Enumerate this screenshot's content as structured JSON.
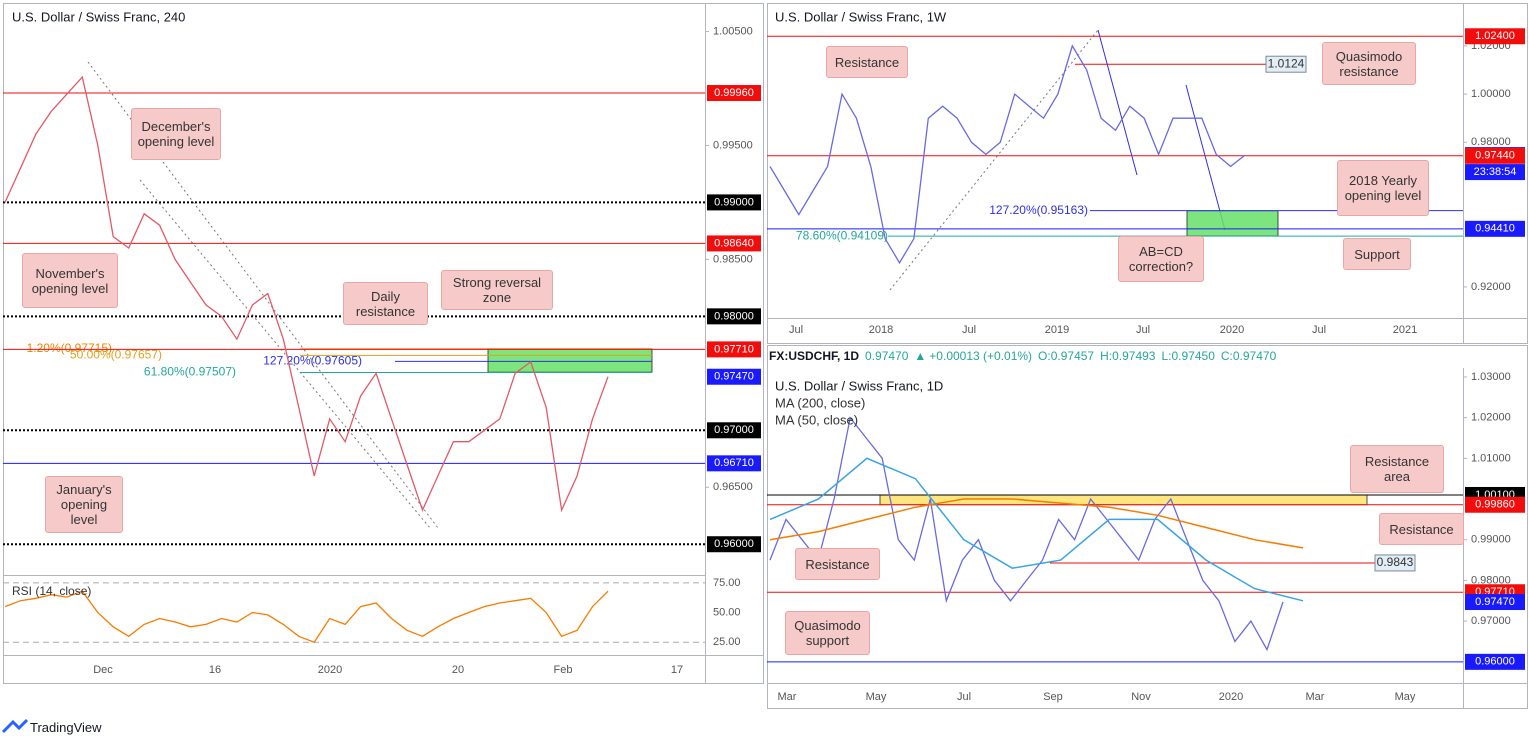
{
  "chart_data": [
    {
      "type": "line",
      "title": "U.S. Dollar / Swiss Franc, 240",
      "ylim": [
        0.9573,
        1.0075
      ],
      "yticks": [
        {
          "value": 1.005,
          "label": "1.00500"
        },
        {
          "value": 0.995,
          "label": "0.99500"
        },
        {
          "value": 0.985,
          "label": "0.98500"
        },
        {
          "value": 0.965,
          "label": "0.96500"
        }
      ],
      "levels": [
        {
          "value": 0.9996,
          "label": "0.99960",
          "color": "#f20d0d",
          "line": "solid"
        },
        {
          "value": 0.99,
          "label": "0.99000",
          "color": "#000000",
          "line": "dotted"
        },
        {
          "value": 0.9864,
          "label": "0.98640",
          "color": "#f20d0d",
          "line": "solid"
        },
        {
          "value": 0.98,
          "label": "0.98000",
          "color": "#000000",
          "line": "dotted"
        },
        {
          "value": 0.9771,
          "label": "0.97710",
          "color": "#f20d0d",
          "line": "solid"
        },
        {
          "value": 0.9747,
          "label": "0.97470",
          "color": "#1a1aff"
        },
        {
          "value": 0.97,
          "label": "0.97000",
          "color": "#000000",
          "line": "dotted"
        },
        {
          "value": 0.9671,
          "label": "0.96710",
          "color": "#1a1aff",
          "line": "solid"
        },
        {
          "value": 0.96,
          "label": "0.96000",
          "color": "#000000",
          "line": "dotted"
        }
      ],
      "fibs": [
        {
          "value": 0.97715,
          "label": "1.20%(0.97715)",
          "color": "#f08000"
        },
        {
          "value": 0.97657,
          "label": "50.00%(0.97657)",
          "color": "#e0a020"
        },
        {
          "value": 0.97605,
          "label": "127.20%(0.97605)",
          "color": "#3030e0"
        },
        {
          "value": 0.97507,
          "label": "61.80%(0.97507)",
          "color": "#26a69a"
        }
      ],
      "zone": {
        "ylim": [
          0.9751,
          0.97715
        ],
        "color": "#66e066"
      },
      "series": [
        {
          "color": "#e05a6a",
          "values": [
            0.99,
            0.993,
            0.996,
            0.998,
            0.9995,
            1.001,
            0.995,
            0.987,
            0.986,
            0.989,
            0.988,
            0.985,
            0.983,
            0.981,
            0.98,
            0.978,
            0.981,
            0.982,
            0.978,
            0.972,
            0.966,
            0.971,
            0.969,
            0.973,
            0.975,
            0.971,
            0.967,
            0.963,
            0.966,
            0.969,
            0.969,
            0.97,
            0.971,
            0.975,
            0.976,
            0.972,
            0.963,
            0.966,
            0.971,
            0.9747
          ]
        }
      ],
      "rsi": {
        "name": "RSI (14, close)",
        "color": "#f57c00",
        "ylim": [
          14.2,
          80.8
        ],
        "yticks": [
          {
            "value": 75,
            "label": "75.00"
          },
          {
            "value": 50,
            "label": "50.00"
          },
          {
            "value": 25,
            "label": "25.00"
          }
        ],
        "values": [
          55,
          60,
          62,
          65,
          63,
          68,
          50,
          38,
          30,
          40,
          45,
          42,
          38,
          40,
          45,
          42,
          50,
          48,
          40,
          30,
          25,
          45,
          40,
          55,
          58,
          45,
          35,
          30,
          38,
          45,
          50,
          55,
          58,
          60,
          62,
          50,
          30,
          35,
          55,
          68
        ]
      },
      "x_labels": [
        "Dec",
        "16",
        "2020",
        "20",
        "Feb",
        "17"
      ],
      "annotations": [
        "December's opening level",
        "November's opening level",
        "January's opening level",
        "Daily resistance",
        "Strong reversal zone"
      ]
    },
    {
      "type": "line",
      "title": "U.S. Dollar / Swiss Franc, 1W",
      "ylim": [
        0.9071,
        1.0378
      ],
      "yticks": [
        {
          "value": 1.02,
          "label": "1.02000"
        },
        {
          "value": 1.0,
          "label": "1.00000"
        },
        {
          "value": 0.98,
          "label": "0.98000"
        },
        {
          "value": 0.92,
          "label": "0.92000"
        }
      ],
      "levels": [
        {
          "value": 1.024,
          "label": "1.02400",
          "color": "#f20d0d",
          "line": "solid"
        },
        {
          "value": 0.9747,
          "label": "0.97470",
          "color": "#1a1aff"
        },
        {
          "value": 0.9744,
          "label": "0.97440",
          "color": "#f20d0d",
          "line": "solid"
        },
        {
          "value": 0.9441,
          "label": "0.94410",
          "color": "#1a1aff",
          "line": "solid"
        }
      ],
      "countdown": "23:38:54",
      "marker": {
        "value": 1.0124,
        "label": "1.0124",
        "color": "#f20d0d"
      },
      "fibs": [
        {
          "value": 0.95163,
          "label": "127.20%(0.95163)",
          "color": "#3030e0"
        },
        {
          "value": 0.94109,
          "label": "78.60%(0.94109)",
          "color": "#26a69a"
        }
      ],
      "zone": {
        "ylim": [
          0.9411,
          0.9516
        ],
        "color": "#66e066"
      },
      "series": [
        {
          "color": "#6a6ae0",
          "values": [
            0.97,
            0.96,
            0.95,
            0.96,
            0.97,
            1.0,
            0.99,
            0.97,
            0.94,
            0.93,
            0.94,
            0.99,
            0.995,
            0.99,
            0.98,
            0.975,
            0.98,
            1.0,
            0.995,
            0.99,
            1.0,
            1.02,
            1.01,
            0.99,
            0.985,
            0.995,
            0.99,
            0.975,
            0.99,
            0.99,
            0.99,
            0.975,
            0.97,
            0.9747
          ]
        }
      ],
      "x_labels": [
        "Jul",
        "2018",
        "Jul",
        "2019",
        "Jul",
        "2020",
        "Jul",
        "2021"
      ],
      "annotations": [
        "Resistance",
        "Quasimodo resistance",
        "2018 Yearly opening level",
        "AB=CD correction?",
        "Support"
      ]
    },
    {
      "type": "line",
      "title": "U.S. Dollar / Swiss Franc, 1D",
      "header": {
        "symbol": "FX:USDCHF, 1D",
        "last": "0.97470",
        "arrow": "▲",
        "change": "+0.00013 (+0.01%)",
        "open": "O:0.97457",
        "high": "H:0.97493",
        "low": "L:0.97450",
        "close": "C:0.97470"
      },
      "ylim": [
        0.9548,
        1.0322
      ],
      "yticks": [
        {
          "value": 1.03,
          "label": "1.03000"
        },
        {
          "value": 1.02,
          "label": "1.02000"
        },
        {
          "value": 1.01,
          "label": "1.01000"
        },
        {
          "value": 0.99,
          "label": "0.99000"
        },
        {
          "value": 0.98,
          "label": "0.98000"
        },
        {
          "value": 0.97,
          "label": "0.97000"
        }
      ],
      "levels": [
        {
          "value": 1.001,
          "label": "1.00100",
          "color": "#000000",
          "line": "solid"
        },
        {
          "value": 0.9986,
          "label": "0.99860",
          "color": "#f20d0d",
          "line": "solid"
        },
        {
          "value": 0.9771,
          "label": "0.97710",
          "color": "#f20d0d",
          "line": "solid"
        },
        {
          "value": 0.9747,
          "label": "0.97470",
          "color": "#1a1aff"
        },
        {
          "value": 0.96,
          "label": "0.96000",
          "color": "#1a1aff",
          "line": "solid"
        }
      ],
      "marker": {
        "value": 0.9843,
        "label": "0.9843",
        "color": "#f20d0d"
      },
      "zone": {
        "ylim": [
          0.9986,
          1.001
        ],
        "color": "#ffe066"
      },
      "series": [
        {
          "color": "#6a6ae0",
          "values": [
            0.985,
            0.995,
            0.99,
            0.985,
            1.0,
            1.02,
            1.015,
            1.01,
            0.99,
            0.985,
            1.0,
            0.975,
            0.985,
            0.99,
            0.98,
            0.975,
            0.98,
            0.985,
            0.995,
            0.99,
            1.0,
            0.995,
            0.99,
            0.985,
            0.995,
            1.0,
            0.99,
            0.98,
            0.975,
            0.965,
            0.97,
            0.963,
            0.9747
          ]
        },
        {
          "name": "MA (200, close)",
          "color": "#f57c00",
          "values": [
            0.99,
            0.992,
            0.995,
            0.998,
            1.0,
            1.0,
            0.999,
            0.998,
            0.996,
            0.993,
            0.99,
            0.988
          ]
        },
        {
          "name": "MA (50, close)",
          "color": "#3ba3e0",
          "values": [
            0.995,
            1.0,
            1.01,
            1.005,
            0.99,
            0.983,
            0.985,
            0.995,
            0.995,
            0.985,
            0.978,
            0.975
          ]
        }
      ],
      "x_labels": [
        "Mar",
        "May",
        "Jul",
        "Sep",
        "Nov",
        "2020",
        "Mar",
        "May"
      ],
      "annotations": [
        "Resistance area",
        "Resistance",
        "Resistance",
        "Quasimodo support"
      ]
    }
  ],
  "footer": {
    "brand": "TradingView"
  }
}
